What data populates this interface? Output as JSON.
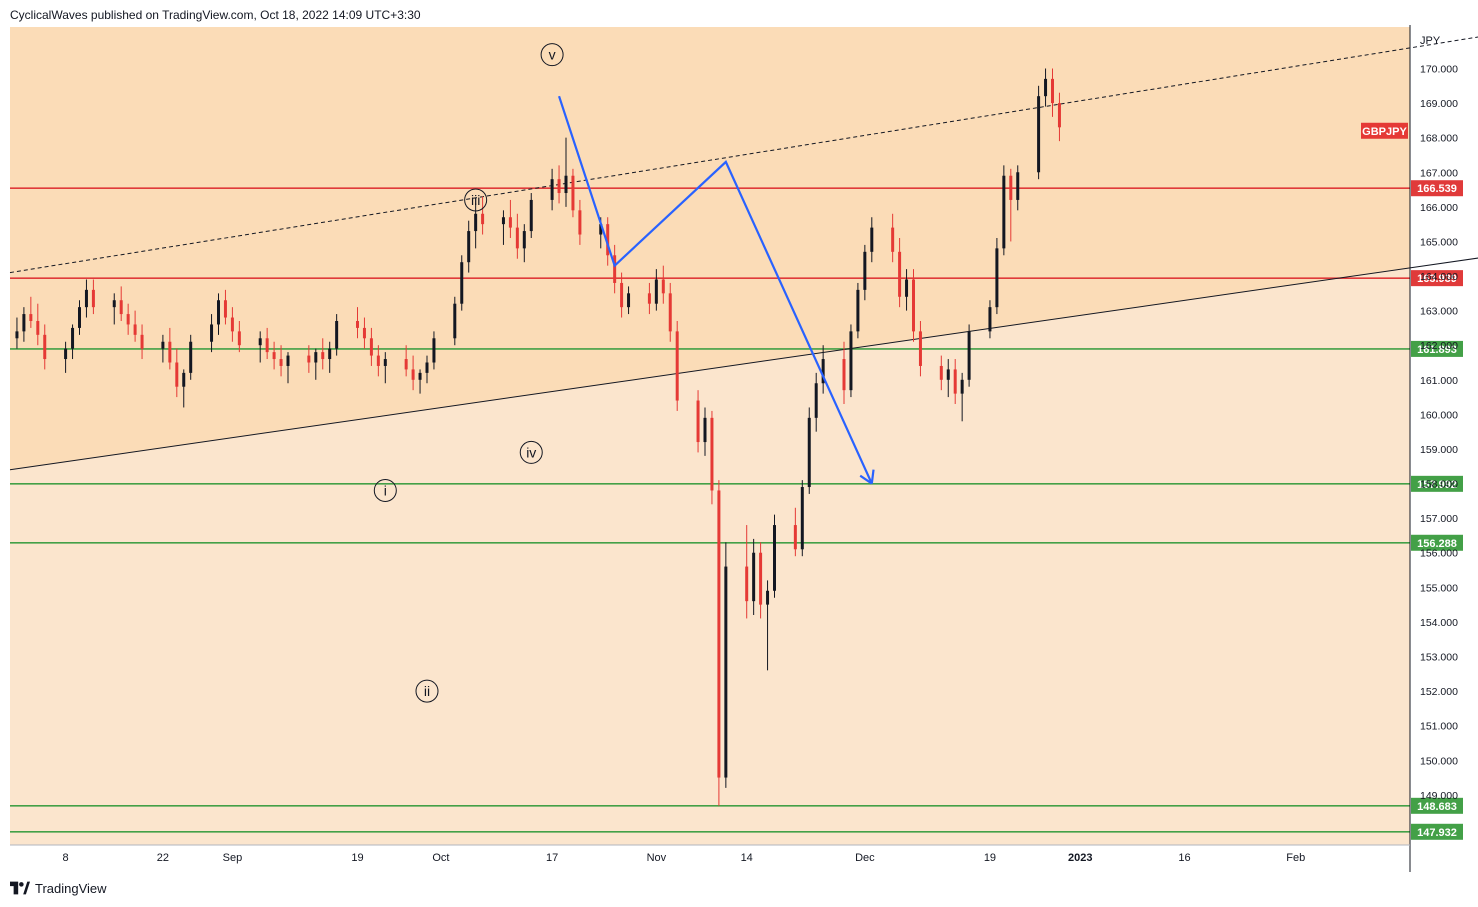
{
  "header": {
    "publisher_line": "CyclicalWaves published on TradingView.com, Oct 18, 2022 14:09 UTC+3:30"
  },
  "footer": {
    "brand": "TradingView",
    "logo_icon": "tradingview-logo-icon"
  },
  "colors": {
    "band_upper": "#fbdcb7",
    "band_lower": "#fbe5cd",
    "resistance": "#e03a3a",
    "support": "#43a047",
    "projection": "#2962ff",
    "candle_up": "#131722",
    "candle_down": "#e53935",
    "symbol_badge": "#e53935"
  },
  "chart_data": {
    "type": "candlestick",
    "symbol": "GBPJPY",
    "currency": "JPY",
    "ylim": [
      147.55,
      171.2
    ],
    "x_tick_labels": [
      "8",
      "22",
      "Sep",
      "19",
      "Oct",
      "17",
      "Nov",
      "14",
      "Dec",
      "19",
      "2023",
      "16",
      "Feb"
    ],
    "y_ticks": [
      "170.000",
      "169.000",
      "168.000",
      "167.000",
      "166.000",
      "165.000",
      "164.000",
      "163.000",
      "162.000",
      "161.000",
      "160.000",
      "159.000",
      "158.000",
      "157.000",
      "156.000",
      "155.000",
      "154.000",
      "153.000",
      "152.000",
      "151.000",
      "150.000",
      "149.000"
    ],
    "horizontal_levels": [
      {
        "value": 166.539,
        "label": "166.539",
        "kind": "resistance"
      },
      {
        "value": 163.939,
        "label": "163.939",
        "kind": "resistance"
      },
      {
        "value": 161.893,
        "label": "161.893",
        "kind": "support"
      },
      {
        "value": 157.992,
        "label": "157.992",
        "kind": "support"
      },
      {
        "value": 156.288,
        "label": "156.288",
        "kind": "support"
      },
      {
        "value": 148.683,
        "label": "148.683",
        "kind": "support"
      },
      {
        "value": 147.932,
        "label": "147.932",
        "kind": "support"
      }
    ],
    "trendlines": [
      {
        "name": "channel-top-dashed",
        "style": "dashed",
        "from": {
          "date": "2022-07-31",
          "price": 164.1
        },
        "to": {
          "date": "2023-03-02",
          "price": 171.0
        }
      },
      {
        "name": "channel-bottom",
        "style": "solid",
        "from": {
          "date": "2022-07-31",
          "price": 158.4
        },
        "to": {
          "date": "2023-03-02",
          "price": 164.6
        }
      }
    ],
    "wave_labels": [
      {
        "label": "i",
        "date": "2022-09-23",
        "price": 157.8
      },
      {
        "label": "ii",
        "date": "2022-09-29",
        "price": 152.0
      },
      {
        "label": "iii",
        "date": "2022-10-06",
        "price": 166.2
      },
      {
        "label": "iv",
        "date": "2022-10-14",
        "price": 158.9
      },
      {
        "label": "v",
        "date": "2022-10-17",
        "price": 170.4
      }
    ],
    "projection_path": [
      {
        "date": "2022-10-18",
        "price": 169.2
      },
      {
        "date": "2022-10-26",
        "price": 164.3
      },
      {
        "date": "2022-11-11",
        "price": 167.3
      },
      {
        "date": "2022-12-02",
        "price": 158.0
      }
    ],
    "candles_ohlc": [
      [
        162.2,
        162.8,
        161.9,
        162.4
      ],
      [
        162.4,
        163.1,
        162.1,
        162.9
      ],
      [
        162.9,
        163.4,
        162.5,
        162.7
      ],
      [
        162.7,
        163.2,
        162.0,
        162.3
      ],
      [
        162.3,
        162.6,
        161.3,
        161.6
      ],
      [
        161.6,
        162.1,
        161.2,
        161.9
      ],
      [
        161.9,
        162.6,
        161.6,
        162.5
      ],
      [
        162.5,
        163.3,
        162.3,
        163.1
      ],
      [
        163.1,
        163.9,
        162.8,
        163.6
      ],
      [
        163.6,
        163.9,
        162.9,
        163.1
      ],
      [
        163.1,
        163.5,
        162.6,
        163.3
      ],
      [
        163.3,
        163.7,
        162.7,
        162.9
      ],
      [
        162.9,
        163.2,
        162.3,
        162.6
      ],
      [
        162.6,
        163.0,
        162.1,
        162.3
      ],
      [
        162.3,
        162.6,
        161.6,
        161.9
      ],
      [
        161.9,
        162.3,
        161.5,
        162.1
      ],
      [
        162.1,
        162.5,
        161.3,
        161.5
      ],
      [
        161.5,
        161.9,
        160.5,
        160.8
      ],
      [
        160.8,
        161.3,
        160.2,
        161.2
      ],
      [
        161.2,
        162.3,
        161.0,
        162.1
      ],
      [
        162.1,
        162.9,
        161.8,
        162.6
      ],
      [
        162.6,
        163.5,
        162.3,
        163.3
      ],
      [
        163.3,
        163.6,
        162.6,
        162.8
      ],
      [
        162.8,
        163.1,
        162.1,
        162.4
      ],
      [
        162.4,
        162.7,
        161.8,
        162.0
      ],
      [
        162.0,
        162.4,
        161.5,
        162.2
      ],
      [
        162.2,
        162.5,
        161.6,
        161.8
      ],
      [
        161.8,
        162.1,
        161.3,
        161.6
      ],
      [
        161.6,
        162.0,
        161.1,
        161.4
      ],
      [
        161.4,
        161.8,
        160.9,
        161.7
      ],
      [
        161.7,
        162.0,
        161.2,
        161.5
      ],
      [
        161.5,
        161.9,
        161.0,
        161.8
      ],
      [
        161.8,
        162.2,
        161.3,
        161.6
      ],
      [
        161.6,
        162.1,
        161.2,
        161.9
      ],
      [
        161.9,
        162.9,
        161.7,
        162.7
      ],
      [
        162.7,
        163.1,
        162.2,
        162.5
      ],
      [
        162.5,
        162.8,
        161.9,
        162.2
      ],
      [
        162.2,
        162.5,
        161.4,
        161.7
      ],
      [
        161.7,
        162.0,
        161.1,
        161.4
      ],
      [
        161.4,
        161.8,
        160.9,
        161.6
      ],
      [
        161.6,
        162.0,
        161.1,
        161.3
      ],
      [
        161.3,
        161.7,
        160.7,
        161.0
      ],
      [
        161.0,
        161.3,
        160.6,
        161.2
      ],
      [
        161.2,
        161.7,
        160.9,
        161.5
      ],
      [
        161.5,
        162.4,
        161.3,
        162.2
      ],
      [
        162.2,
        163.4,
        162.0,
        163.2
      ],
      [
        163.2,
        164.6,
        163.0,
        164.4
      ],
      [
        164.4,
        165.6,
        164.1,
        165.3
      ],
      [
        165.3,
        166.1,
        164.8,
        165.8
      ],
      [
        165.8,
        166.3,
        165.2,
        165.5
      ],
      [
        165.5,
        165.9,
        164.9,
        165.7
      ],
      [
        165.7,
        166.2,
        165.1,
        165.4
      ],
      [
        165.4,
        165.8,
        164.5,
        164.8
      ],
      [
        164.8,
        165.5,
        164.4,
        165.3
      ],
      [
        165.3,
        166.4,
        165.1,
        166.2
      ],
      [
        166.2,
        167.1,
        165.9,
        166.8
      ],
      [
        166.8,
        167.2,
        166.1,
        166.4
      ],
      [
        166.4,
        168.0,
        166.0,
        166.9
      ],
      [
        166.9,
        167.1,
        165.7,
        165.9
      ],
      [
        165.9,
        166.2,
        164.9,
        165.2
      ],
      [
        165.2,
        165.7,
        164.8,
        165.5
      ],
      [
        165.5,
        165.7,
        164.3,
        164.6
      ],
      [
        164.6,
        164.9,
        163.5,
        163.8
      ],
      [
        163.8,
        164.1,
        162.8,
        163.1
      ],
      [
        163.1,
        163.7,
        162.9,
        163.5
      ],
      [
        163.5,
        163.8,
        162.9,
        163.2
      ],
      [
        163.2,
        164.2,
        163.0,
        163.9
      ],
      [
        163.9,
        164.3,
        163.2,
        163.5
      ],
      [
        163.5,
        163.8,
        162.1,
        162.4
      ],
      [
        162.4,
        162.7,
        160.1,
        160.4
      ],
      [
        160.4,
        160.7,
        158.9,
        159.2
      ],
      [
        159.2,
        160.2,
        158.8,
        159.9
      ],
      [
        159.9,
        160.1,
        157.4,
        157.8
      ],
      [
        157.8,
        158.1,
        148.683,
        149.5
      ],
      [
        149.5,
        156.3,
        149.2,
        155.6
      ],
      [
        155.6,
        156.8,
        154.1,
        154.6
      ],
      [
        154.6,
        156.4,
        154.2,
        156.0
      ],
      [
        156.0,
        156.3,
        154.1,
        154.5
      ],
      [
        154.5,
        155.2,
        152.6,
        154.9
      ],
      [
        154.9,
        157.1,
        154.7,
        156.8
      ],
      [
        156.8,
        157.3,
        155.9,
        156.1
      ],
      [
        156.1,
        158.1,
        155.9,
        157.9
      ],
      [
        157.9,
        160.2,
        157.7,
        159.9
      ],
      [
        159.9,
        161.2,
        159.5,
        160.9
      ],
      [
        160.9,
        162.0,
        160.6,
        161.6
      ],
      [
        161.6,
        162.1,
        160.3,
        160.7
      ],
      [
        160.7,
        162.6,
        160.5,
        162.4
      ],
      [
        162.4,
        163.8,
        162.2,
        163.6
      ],
      [
        163.6,
        164.9,
        163.3,
        164.7
      ],
      [
        164.7,
        165.7,
        164.4,
        165.4
      ],
      [
        165.4,
        165.8,
        164.4,
        164.7
      ],
      [
        164.7,
        165.1,
        163.1,
        163.4
      ],
      [
        163.4,
        164.2,
        163.0,
        163.9
      ],
      [
        163.9,
        164.2,
        162.1,
        162.4
      ],
      [
        162.4,
        162.7,
        161.1,
        161.4
      ],
      [
        161.4,
        161.7,
        160.7,
        161.0
      ],
      [
        161.0,
        161.6,
        160.5,
        161.3
      ],
      [
        161.3,
        161.6,
        160.3,
        160.6
      ],
      [
        160.6,
        161.2,
        159.8,
        161.0
      ],
      [
        161.0,
        162.6,
        160.8,
        162.4
      ],
      [
        162.4,
        163.3,
        162.2,
        163.1
      ],
      [
        163.1,
        165.1,
        162.9,
        164.8
      ],
      [
        164.8,
        167.2,
        164.6,
        166.9
      ],
      [
        166.9,
        167.1,
        165.0,
        166.2
      ],
      [
        166.2,
        167.2,
        165.9,
        167.0
      ],
      [
        167.0,
        169.5,
        166.8,
        169.2
      ],
      [
        169.2,
        170.0,
        168.9,
        169.7
      ],
      [
        169.7,
        170.0,
        168.6,
        169.0
      ],
      [
        169.0,
        169.3,
        167.9,
        168.3
      ]
    ]
  }
}
